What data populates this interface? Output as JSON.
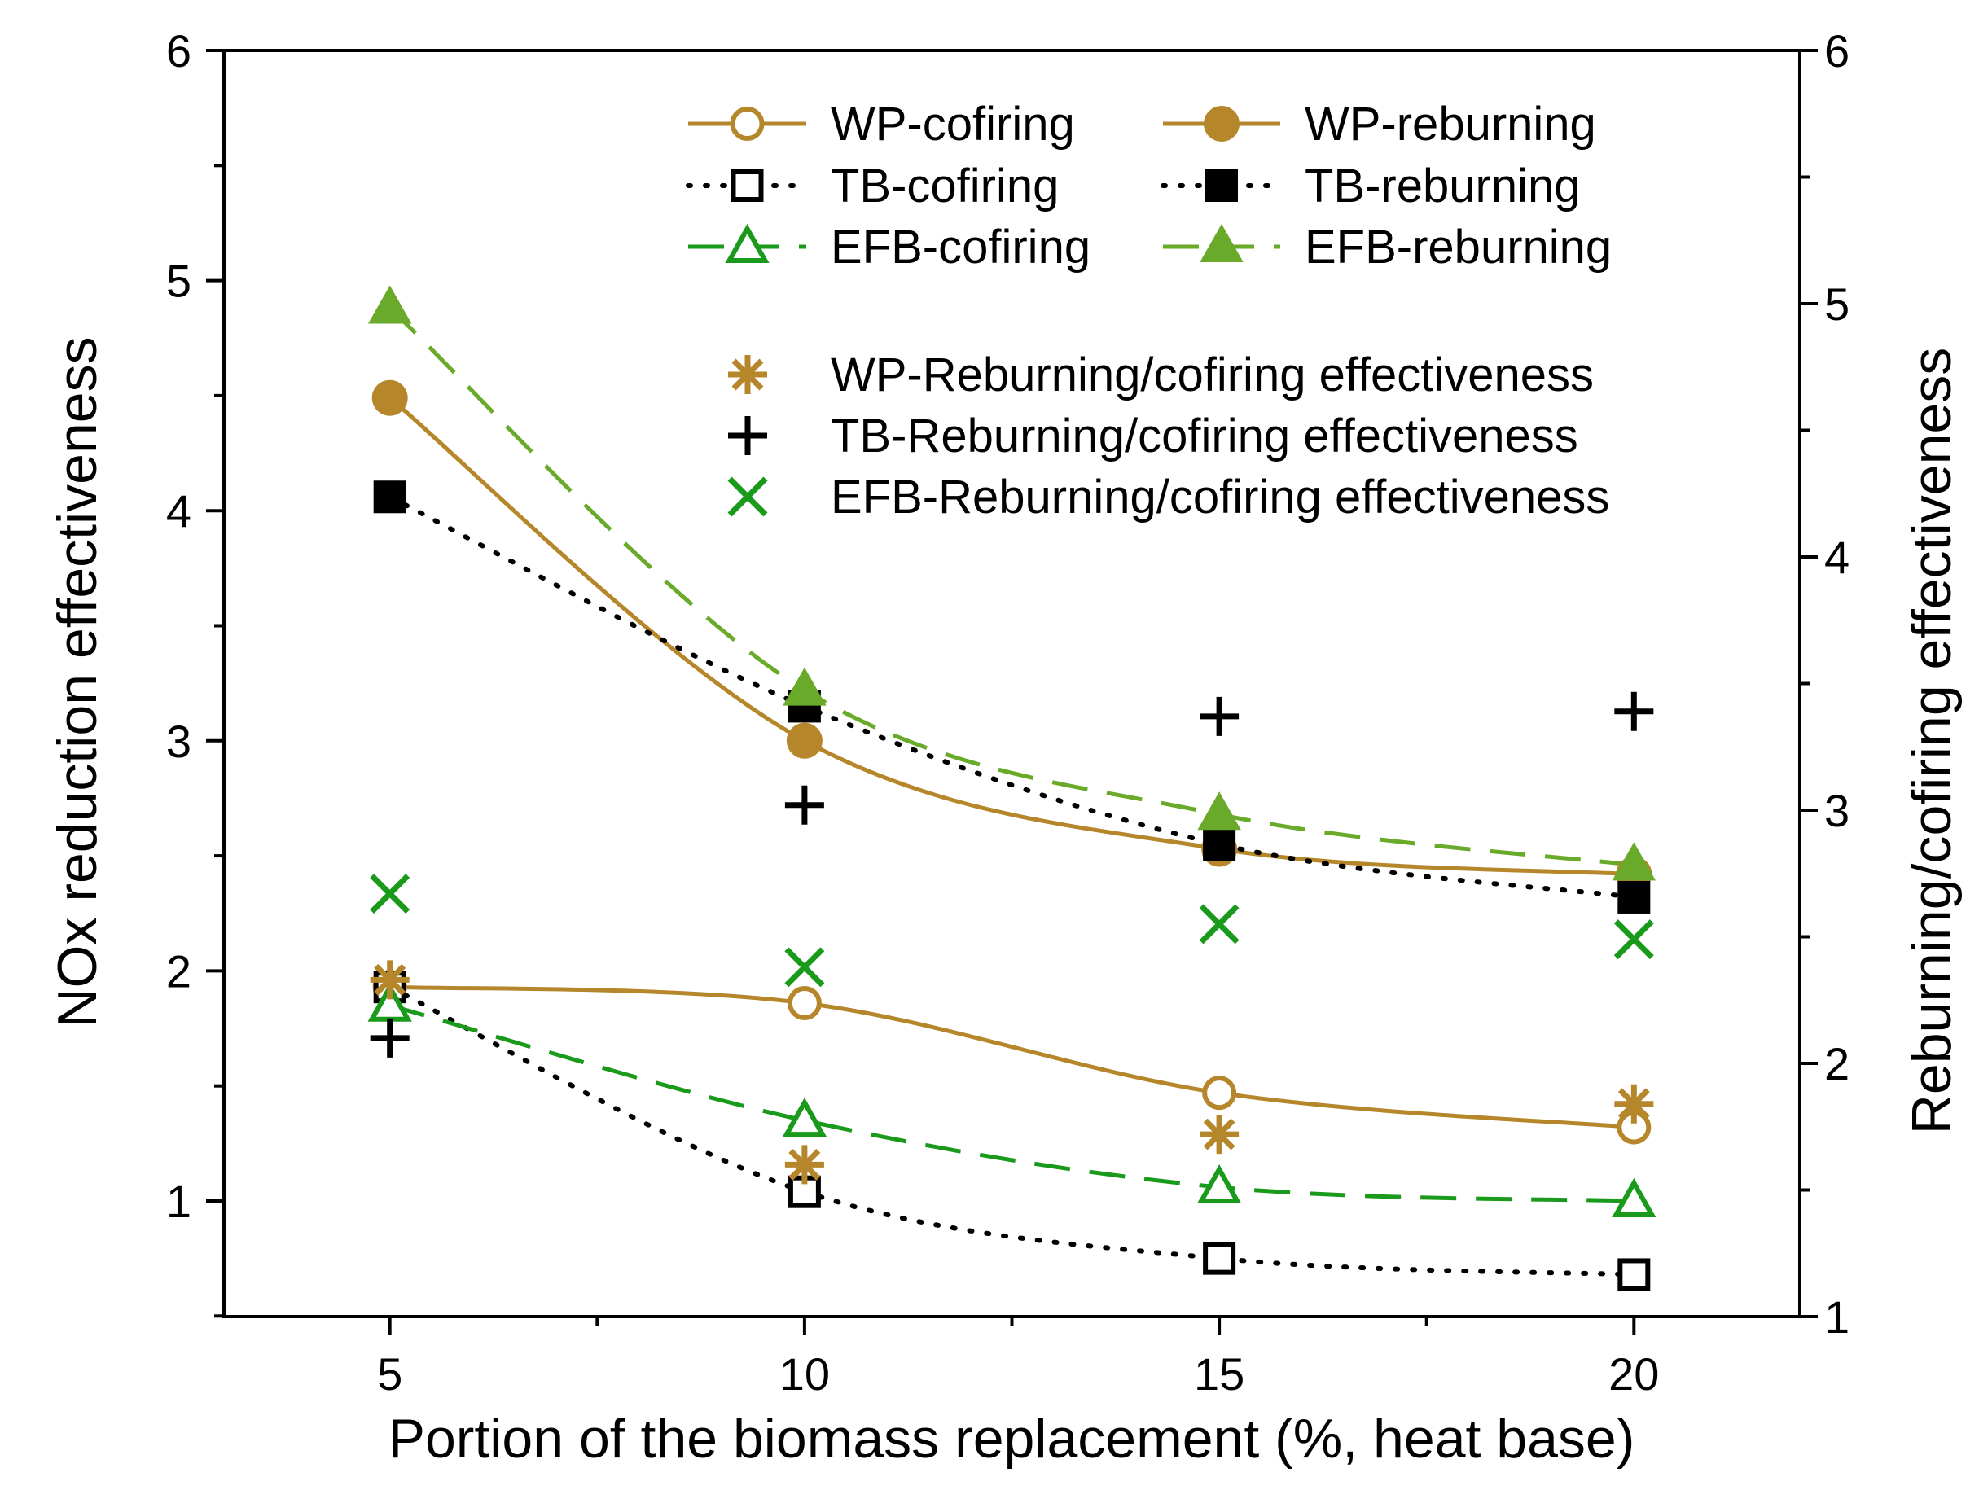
{
  "chart_data": {
    "type": "line",
    "xlabel": "Portion of the biomass replacement (%, heat base)",
    "ylabel_left": "NOx reduction effectiveness",
    "ylabel_right": "Reburning/cofiring effectiveness",
    "xlim": [
      3,
      22
    ],
    "ylim_left": [
      0.5,
      6
    ],
    "ylim_right": [
      1,
      6
    ],
    "xticks": [
      5,
      10,
      15,
      20
    ],
    "yticks_left": [
      1,
      2,
      3,
      4,
      5,
      6
    ],
    "yticks_right": [
      1,
      2,
      3,
      4,
      5,
      6
    ],
    "x": [
      5,
      10,
      15,
      20
    ],
    "series": [
      {
        "name": "WP-cofiring",
        "axis": "left",
        "values": [
          1.93,
          1.86,
          1.47,
          1.32
        ],
        "color": "#b5862a",
        "marker": "open-circle",
        "line": "solid"
      },
      {
        "name": "WP-reburning",
        "axis": "left",
        "values": [
          4.49,
          3.0,
          2.53,
          2.42
        ],
        "color": "#b5862a",
        "marker": "filled-circle",
        "line": "solid"
      },
      {
        "name": "TB-cofiring",
        "axis": "left",
        "values": [
          1.93,
          1.04,
          0.75,
          0.68
        ],
        "color": "#000000",
        "marker": "open-square",
        "line": "dotted"
      },
      {
        "name": "TB-reburning",
        "axis": "left",
        "values": [
          4.06,
          3.15,
          2.55,
          2.32
        ],
        "color": "#000000",
        "marker": "filled-square",
        "line": "dotted"
      },
      {
        "name": "EFB-cofiring",
        "axis": "left",
        "values": [
          1.85,
          1.35,
          1.06,
          1.0
        ],
        "color": "#1a9a1a",
        "marker": "open-triangle",
        "line": "dashed"
      },
      {
        "name": "EFB-reburning",
        "axis": "left",
        "values": [
          4.88,
          3.22,
          2.68,
          2.46
        ],
        "color": "#6aaa2a",
        "marker": "filled-triangle",
        "line": "dashed"
      },
      {
        "name": "WP-Reburning/cofiring effectiveness",
        "axis": "right",
        "values": [
          2.33,
          1.6,
          1.72,
          1.84
        ],
        "color": "#b5862a",
        "marker": "asterisk",
        "line": "none"
      },
      {
        "name": "TB-Reburning/cofiring effectiveness",
        "axis": "right",
        "values": [
          2.1,
          3.02,
          3.37,
          3.39
        ],
        "color": "#000000",
        "marker": "plus",
        "line": "none"
      },
      {
        "name": "EFB-Reburning/cofiring effectiveness",
        "axis": "right",
        "values": [
          2.67,
          2.38,
          2.55,
          2.49
        ],
        "color": "#1a9a1a",
        "marker": "cross",
        "line": "none"
      }
    ]
  }
}
